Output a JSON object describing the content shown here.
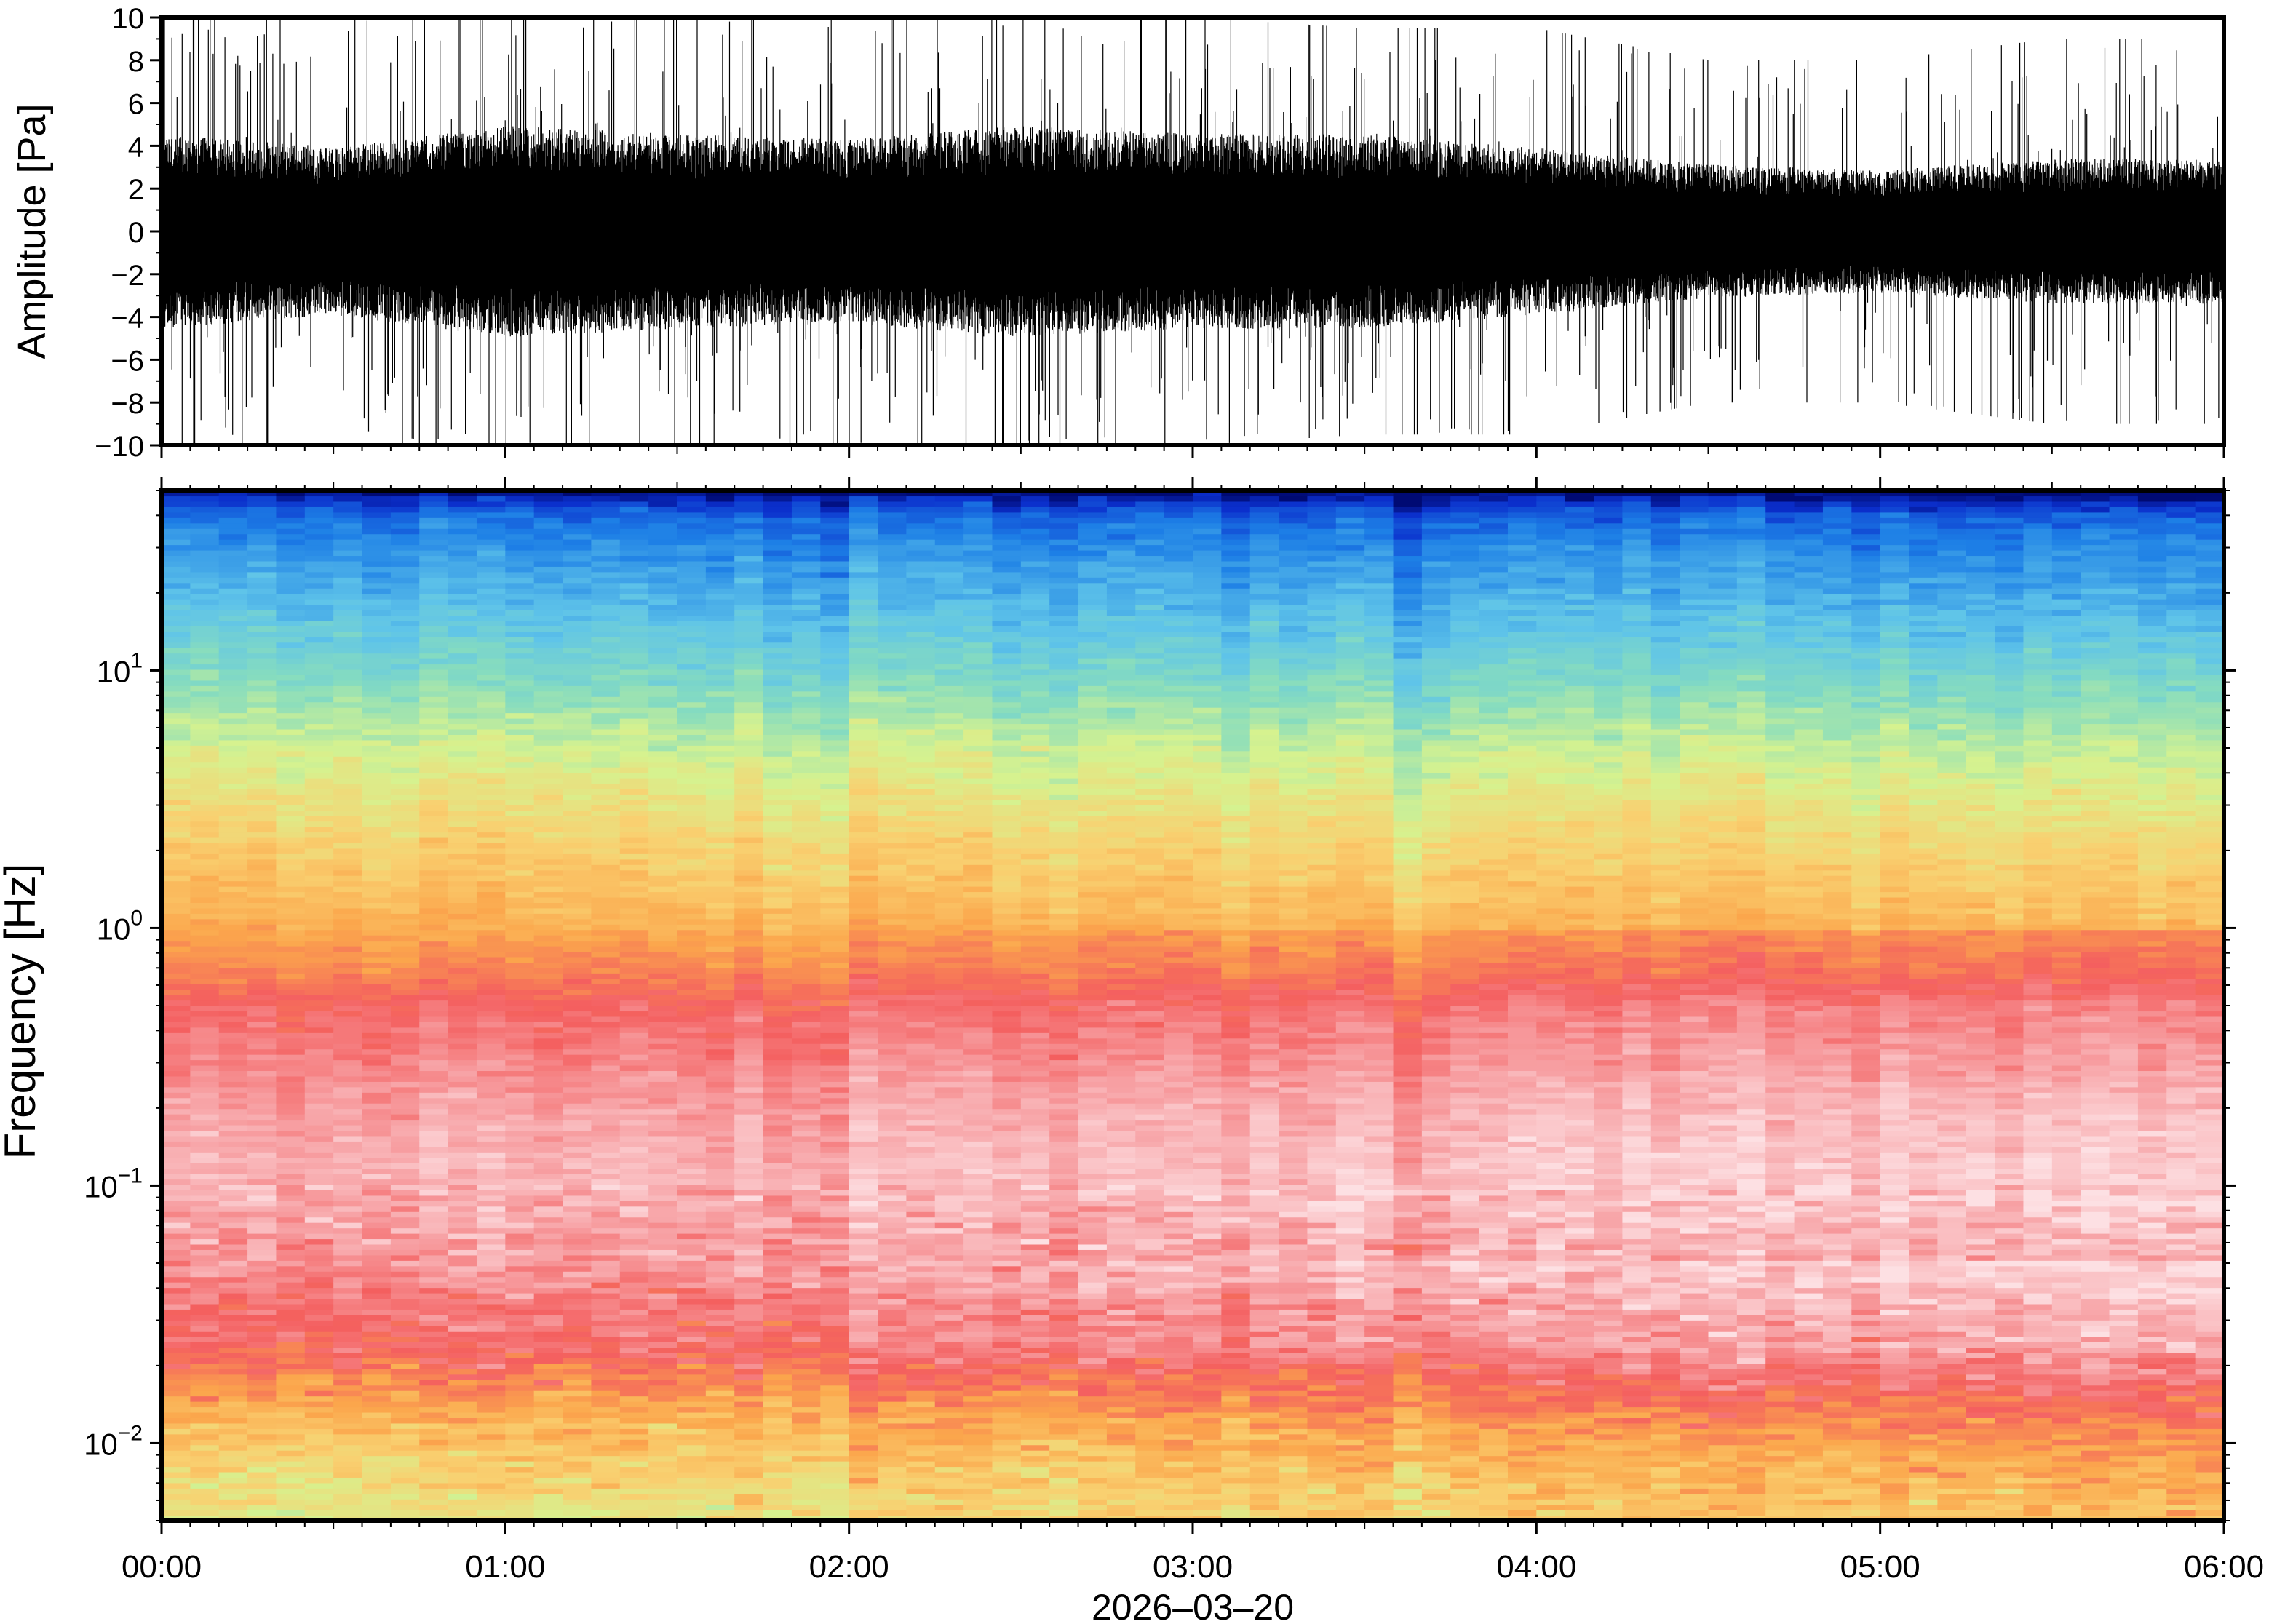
{
  "chart_data": [
    {
      "type": "line",
      "title": "",
      "ylabel": "Amplitude [Pa]",
      "xlabel": "",
      "ylim": [
        -10,
        10
      ],
      "xlim": [
        "00:00",
        "06:00"
      ],
      "yticks": [
        -10,
        -8,
        -6,
        -4,
        -2,
        0,
        2,
        4,
        6,
        8,
        10
      ],
      "ytick_labels": [
        "−10",
        "−8",
        "−6",
        "−4",
        "−2",
        "0",
        "2",
        "4",
        "6",
        "8",
        "10"
      ],
      "grid": false,
      "series": [
        {
          "color": "#000000",
          "envelope_hours": [
            0,
            0.5,
            1.0,
            1.5,
            2.0,
            2.5,
            3.0,
            3.5,
            4.0,
            4.5,
            5.0,
            5.5,
            6.0
          ],
          "typical_amplitude_pa": [
            3.5,
            3.0,
            3.8,
            3.5,
            3.3,
            3.8,
            3.5,
            3.5,
            3.0,
            2.4,
            2.2,
            2.6,
            2.6
          ],
          "peak_amplitude_pa": [
            10,
            10,
            10,
            10,
            10,
            10,
            10,
            9.5,
            9.5,
            8,
            8,
            9,
            9
          ]
        }
      ]
    },
    {
      "type": "heatmap",
      "title": "",
      "ylabel": "Frequency [Hz]",
      "xlabel": "2026–03–20",
      "yscale": "log",
      "ylim": [
        0.005,
        50
      ],
      "yticks": [
        0.01,
        0.1,
        1,
        10
      ],
      "ytick_labels": [
        {
          "base": "10",
          "exp": "−2"
        },
        {
          "base": "10",
          "exp": "−1"
        },
        {
          "base": "10",
          "exp": "0"
        },
        {
          "base": "10",
          "exp": "1"
        }
      ],
      "xticks": [
        "00:00",
        "01:00",
        "02:00",
        "03:00",
        "04:00",
        "05:00",
        "06:00"
      ],
      "xlim": [
        "00:00",
        "06:00"
      ],
      "colormap": [
        {
          "level": 0.0,
          "color": "#000a73"
        },
        {
          "level": 0.06,
          "color": "#0b2fcc"
        },
        {
          "level": 0.16,
          "color": "#1d7fe6"
        },
        {
          "level": 0.28,
          "color": "#5fc4e9"
        },
        {
          "level": 0.38,
          "color": "#86dcbf"
        },
        {
          "level": 0.48,
          "color": "#d6f28f"
        },
        {
          "level": 0.58,
          "color": "#f9d070"
        },
        {
          "level": 0.68,
          "color": "#fba64c"
        },
        {
          "level": 0.8,
          "color": "#f45f5f"
        },
        {
          "level": 0.9,
          "color": "#f7a1a4"
        },
        {
          "level": 1.0,
          "color": "#fde0e3"
        }
      ],
      "level_profile": {
        "frequency_hz": [
          50,
          45,
          40,
          30,
          20,
          12,
          8,
          5,
          3,
          2,
          1.2,
          0.7,
          0.5,
          0.3,
          0.2,
          0.12,
          0.08,
          0.05,
          0.035,
          0.025,
          0.018,
          0.012,
          0.008,
          0.005
        ],
        "level": [
          0.0,
          0.08,
          0.14,
          0.2,
          0.26,
          0.33,
          0.4,
          0.48,
          0.54,
          0.59,
          0.64,
          0.72,
          0.8,
          0.85,
          0.89,
          0.92,
          0.91,
          0.87,
          0.82,
          0.8,
          0.72,
          0.62,
          0.55,
          0.5
        ]
      }
    }
  ]
}
